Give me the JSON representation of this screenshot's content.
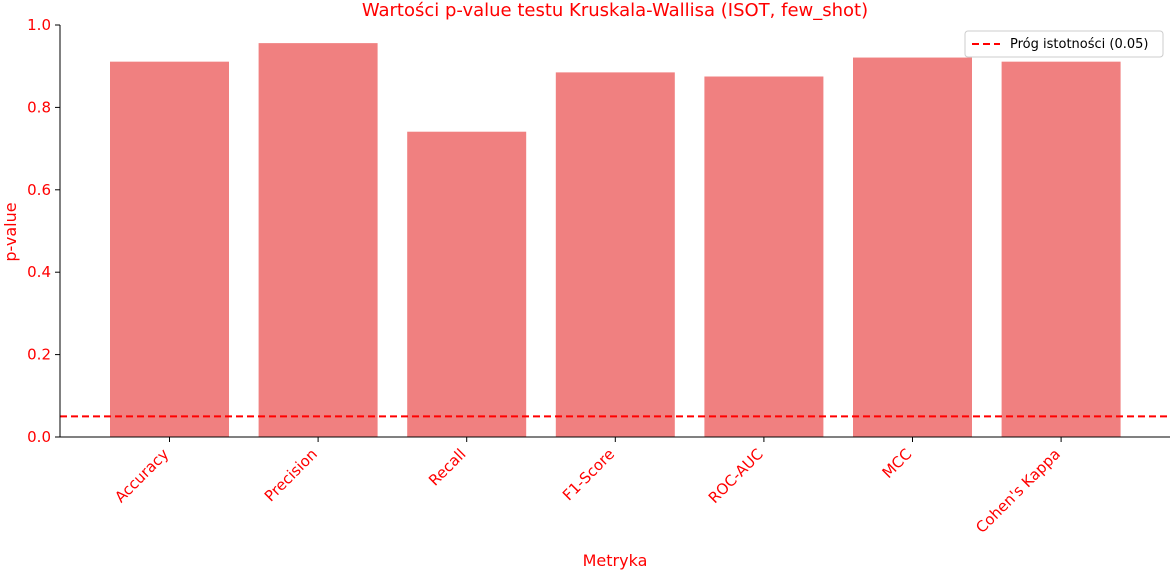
{
  "chart_data": {
    "type": "bar",
    "title": "Wartości p-value testu Kruskala-Wallisa (ISOT, few_shot)",
    "xlabel": "Metryka",
    "ylabel": "p-value",
    "categories": [
      "Accuracy",
      "Precision",
      "Recall",
      "F1-Score",
      "ROC-AUC",
      "MCC",
      "Cohen's Kappa"
    ],
    "values": [
      0.911,
      0.956,
      0.741,
      0.885,
      0.875,
      0.921,
      0.911
    ],
    "ylim": [
      0,
      1.0
    ],
    "yticks": [
      "0.0",
      "0.2",
      "0.4",
      "0.6",
      "0.8",
      "1.0"
    ],
    "threshold": {
      "value": 0.05,
      "label": "Próg istotności (0.05)"
    },
    "legend_position": "top-right",
    "grid": false,
    "colors": {
      "bar": "#f08080",
      "threshold": "#ff0000",
      "text": "#ff0000",
      "axis": "#000000"
    }
  }
}
